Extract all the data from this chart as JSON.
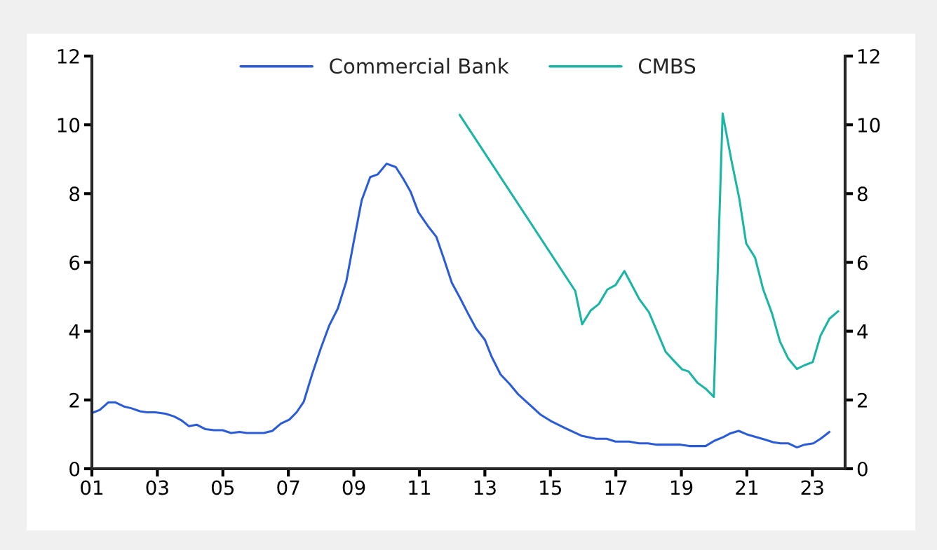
{
  "chart_data": {
    "type": "line",
    "series": [
      {
        "name": "Commercial Bank",
        "color": "#2b5cd8",
        "x": [
          2001.0,
          2001.24,
          2001.5,
          2001.72,
          2001.98,
          2002.2,
          2002.47,
          2002.68,
          2002.94,
          2003.25,
          2003.51,
          2003.73,
          2003.96,
          2004.2,
          2004.47,
          2004.73,
          2004.99,
          2005.25,
          2005.51,
          2005.73,
          2006.25,
          2006.51,
          2006.77,
          2007.03,
          2007.25,
          2007.47,
          2007.73,
          2007.99,
          2008.25,
          2008.51,
          2008.77,
          2008.99,
          2009.24,
          2009.5,
          2009.73,
          2010.0,
          2010.28,
          2010.51,
          2010.73,
          2010.97,
          2011.25,
          2011.52,
          2011.73,
          2011.99,
          2012.25,
          2012.47,
          2012.73,
          2013.0,
          2013.2,
          2013.48,
          2013.75,
          2014.02,
          2014.29,
          2014.69,
          2015.01,
          2015.5,
          2015.95,
          2016.4,
          2016.72,
          2016.99,
          2017.4,
          2017.71,
          2017.98,
          2018.25,
          2018.97,
          2019.24,
          2019.74,
          2020.0,
          2020.28,
          2020.5,
          2020.75,
          2021.0,
          2021.54,
          2021.81,
          2022.03,
          2022.26,
          2022.53,
          2022.76,
          2023.03,
          2023.25,
          2023.52
        ],
        "values": [
          1.62,
          1.71,
          1.93,
          1.93,
          1.81,
          1.76,
          1.67,
          1.64,
          1.64,
          1.6,
          1.52,
          1.41,
          1.24,
          1.28,
          1.15,
          1.12,
          1.12,
          1.04,
          1.07,
          1.04,
          1.04,
          1.1,
          1.31,
          1.43,
          1.64,
          1.95,
          2.76,
          3.5,
          4.17,
          4.66,
          5.45,
          6.57,
          7.81,
          8.48,
          8.56,
          8.87,
          8.77,
          8.43,
          8.06,
          7.46,
          7.07,
          6.74,
          6.16,
          5.41,
          4.95,
          4.54,
          4.08,
          3.75,
          3.27,
          2.74,
          2.47,
          2.16,
          1.93,
          1.58,
          1.39,
          1.16,
          0.96,
          0.87,
          0.87,
          0.79,
          0.79,
          0.74,
          0.74,
          0.7,
          0.7,
          0.66,
          0.66,
          0.81,
          0.92,
          1.03,
          1.1,
          1.0,
          0.85,
          0.77,
          0.74,
          0.74,
          0.62,
          0.7,
          0.74,
          0.87,
          1.07
        ]
      },
      {
        "name": "CMBS",
        "color": "#1ab5a4",
        "x": [
          2012.23,
          2015.76,
          2015.97,
          2016.23,
          2016.48,
          2016.74,
          2016.99,
          2017.26,
          2017.71,
          2018.01,
          2018.52,
          2018.77,
          2019.02,
          2019.22,
          2019.49,
          2019.74,
          2019.99,
          2020.26,
          2020.53,
          2020.77,
          2020.98,
          2021.25,
          2021.5,
          2021.77,
          2022.01,
          2022.26,
          2022.53,
          2022.76,
          2023.01,
          2023.25,
          2023.52,
          2023.79
        ],
        "values": [
          10.29,
          5.17,
          4.2,
          4.6,
          4.79,
          5.21,
          5.34,
          5.75,
          4.94,
          4.55,
          3.4,
          3.14,
          2.89,
          2.83,
          2.5,
          2.33,
          2.09,
          10.33,
          8.96,
          7.85,
          6.55,
          6.14,
          5.21,
          4.51,
          3.7,
          3.21,
          2.9,
          3.01,
          3.1,
          3.87,
          4.36,
          4.58
        ]
      }
    ],
    "xlim": [
      2001,
      2024
    ],
    "xticks": [
      {
        "value": 2001,
        "label": "01"
      },
      {
        "value": 2003,
        "label": "03"
      },
      {
        "value": 2005,
        "label": "05"
      },
      {
        "value": 2007,
        "label": "07"
      },
      {
        "value": 2009,
        "label": "09"
      },
      {
        "value": 2011,
        "label": "11"
      },
      {
        "value": 2013,
        "label": "13"
      },
      {
        "value": 2015,
        "label": "15"
      },
      {
        "value": 2017,
        "label": "17"
      },
      {
        "value": 2019,
        "label": "19"
      },
      {
        "value": 2021,
        "label": "21"
      },
      {
        "value": 2023,
        "label": "23"
      }
    ],
    "ylim": [
      0,
      12
    ],
    "yticks": [
      0,
      2,
      4,
      6,
      8,
      10,
      12
    ],
    "y2lim": [
      0,
      12
    ],
    "y2ticks": [
      0,
      2,
      4,
      6,
      8,
      10,
      12
    ],
    "grid": false,
    "legend": "top",
    "line_style": "solid",
    "marker": "none"
  }
}
